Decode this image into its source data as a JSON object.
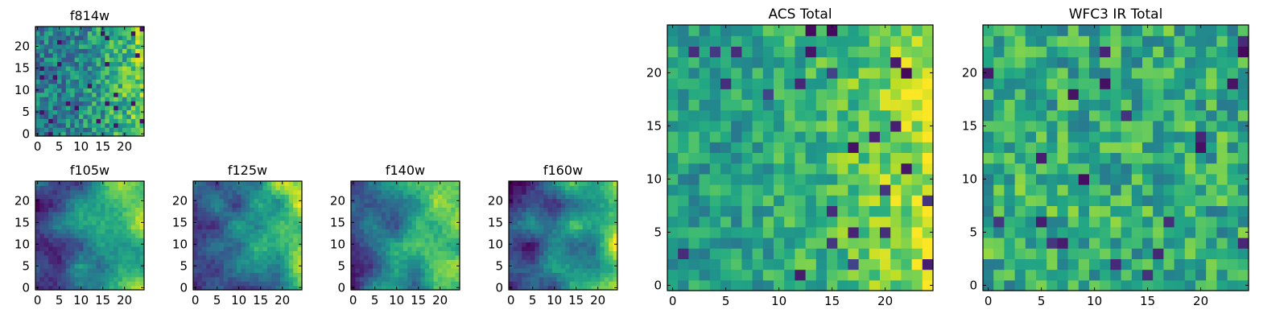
{
  "figure": {
    "colormap": "viridis"
  },
  "chart_data": [
    {
      "type": "heatmap",
      "title": "f814w",
      "xlim": [
        0,
        25
      ],
      "ylim": [
        0,
        25
      ],
      "xticks": [
        0,
        5,
        10,
        15,
        20
      ],
      "yticks": [
        0,
        5,
        10,
        15,
        20
      ],
      "pattern": "noisy gradient, brighter toward right edge"
    },
    {
      "type": "heatmap",
      "title": "f105w",
      "xlim": [
        0,
        25
      ],
      "ylim": [
        0,
        25
      ],
      "xticks": [
        0,
        5,
        10,
        15,
        20
      ],
      "yticks": [
        0,
        5,
        10,
        15,
        20
      ],
      "pattern": "smooth gradient, bright yellow upper-right, dark purple blobs on left"
    },
    {
      "type": "heatmap",
      "title": "f125w",
      "xlim": [
        0,
        25
      ],
      "ylim": [
        0,
        25
      ],
      "xticks": [
        0,
        5,
        10,
        15,
        20
      ],
      "yticks": [
        0,
        5,
        10,
        15,
        20
      ],
      "pattern": "smooth gradient, bright yellow upper-right"
    },
    {
      "type": "heatmap",
      "title": "f140w",
      "xlim": [
        0,
        25
      ],
      "ylim": [
        0,
        25
      ],
      "xticks": [
        0,
        5,
        10,
        15,
        20
      ],
      "yticks": [
        0,
        5,
        10,
        15,
        20
      ],
      "pattern": "smooth gradient, dark purple blobs lower-left"
    },
    {
      "type": "heatmap",
      "title": "f160w",
      "xlim": [
        0,
        25
      ],
      "ylim": [
        0,
        25
      ],
      "xticks": [
        0,
        5,
        10,
        15,
        20
      ],
      "yticks": [
        0,
        5,
        10,
        15,
        20
      ],
      "pattern": "smooth gradient, bright right edge, dark lower-left"
    },
    {
      "type": "heatmap",
      "title": "ACS Total",
      "xlim": [
        0,
        25
      ],
      "ylim": [
        0,
        25
      ],
      "xticks": [
        0,
        5,
        10,
        15,
        20
      ],
      "yticks": [
        0,
        5,
        10,
        15,
        20
      ],
      "pattern": "noisy, mostly green, bright yellow toward right"
    },
    {
      "type": "heatmap",
      "title": "WFC3 IR Total",
      "xlim": [
        0,
        25
      ],
      "ylim": [
        0,
        25
      ],
      "xticks": [
        0,
        5,
        10,
        15,
        20
      ],
      "yticks": [
        0,
        5,
        10,
        15,
        20
      ],
      "pattern": "noisy, mostly green-yellow, few dark cells"
    }
  ]
}
